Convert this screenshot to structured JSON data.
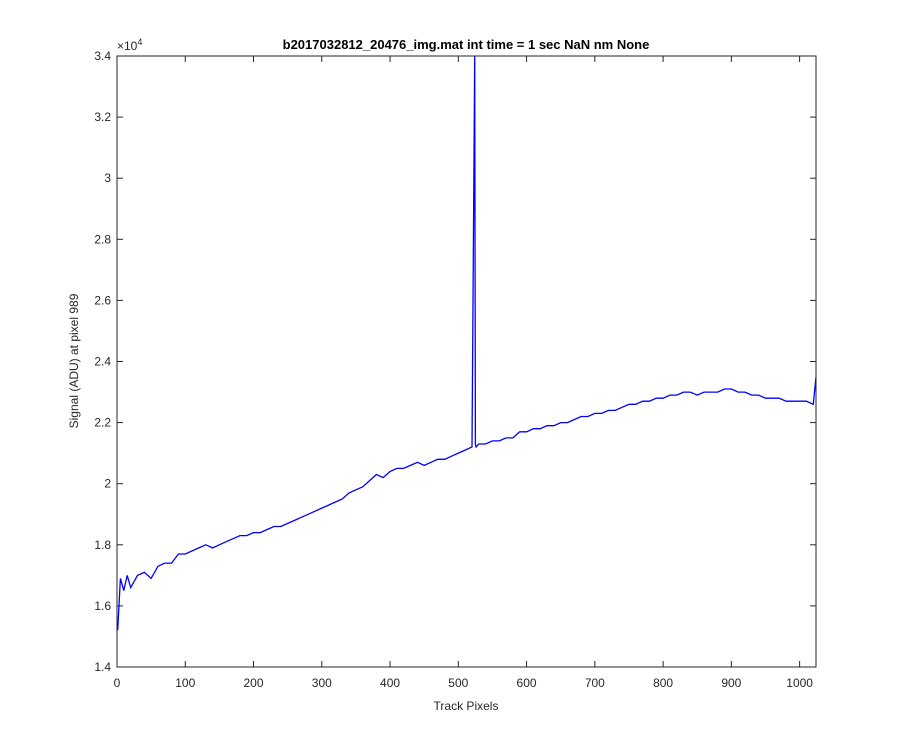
{
  "chart_data": {
    "type": "line",
    "title": "b2017032812_20476_img.mat int time = 1 sec  NaN nm None",
    "xlabel": "Track Pixels",
    "ylabel": "Signal (ADU) at pixel 989",
    "y_exponent_label": "×10",
    "y_exponent_power": "4",
    "xlim": [
      0,
      1024
    ],
    "ylim": [
      14000,
      34000
    ],
    "x_ticks": [
      0,
      100,
      200,
      300,
      400,
      500,
      600,
      700,
      800,
      900,
      1000
    ],
    "x_tick_labels": [
      "0",
      "100",
      "200",
      "300",
      "400",
      "500",
      "600",
      "700",
      "800",
      "900",
      "1000"
    ],
    "y_ticks": [
      14000,
      16000,
      18000,
      20000,
      22000,
      24000,
      26000,
      28000,
      30000,
      32000,
      34000
    ],
    "y_tick_labels": [
      "1.4",
      "1.6",
      "1.8",
      "2",
      "2.2",
      "2.4",
      "2.6",
      "2.8",
      "3",
      "3.2",
      "3.4"
    ],
    "grid": false,
    "line_color": "#0000ff",
    "series": [
      {
        "x": [
          1,
          5,
          10,
          15,
          20,
          30,
          40,
          50,
          60,
          70,
          80,
          90,
          100,
          110,
          120,
          130,
          140,
          150,
          160,
          170,
          180,
          190,
          200,
          210,
          220,
          230,
          240,
          250,
          260,
          270,
          280,
          290,
          300,
          310,
          320,
          330,
          340,
          350,
          360,
          370,
          380,
          390,
          400,
          410,
          420,
          430,
          440,
          450,
          460,
          470,
          480,
          490,
          500,
          510,
          520,
          524,
          525,
          526,
          530,
          540,
          550,
          560,
          570,
          580,
          590,
          600,
          610,
          620,
          630,
          640,
          650,
          660,
          670,
          680,
          690,
          700,
          710,
          720,
          730,
          740,
          750,
          760,
          770,
          780,
          790,
          800,
          810,
          820,
          830,
          840,
          850,
          860,
          870,
          880,
          890,
          900,
          910,
          920,
          930,
          940,
          950,
          960,
          970,
          980,
          990,
          1000,
          1010,
          1020,
          1024
        ],
        "y": [
          15200,
          16900,
          16500,
          17000,
          16600,
          17000,
          17100,
          16900,
          17300,
          17400,
          17400,
          17700,
          17700,
          17800,
          17900,
          18000,
          17900,
          18000,
          18100,
          18200,
          18300,
          18300,
          18400,
          18400,
          18500,
          18600,
          18600,
          18700,
          18800,
          18900,
          19000,
          19100,
          19200,
          19300,
          19400,
          19500,
          19700,
          19800,
          19900,
          20100,
          20300,
          20200,
          20400,
          20500,
          20500,
          20600,
          20700,
          20600,
          20700,
          20800,
          20800,
          20900,
          21000,
          21100,
          21200,
          34000,
          21300,
          21200,
          21300,
          21300,
          21400,
          21400,
          21500,
          21500,
          21700,
          21700,
          21800,
          21800,
          21900,
          21900,
          22000,
          22000,
          22100,
          22200,
          22200,
          22300,
          22300,
          22400,
          22400,
          22500,
          22600,
          22600,
          22700,
          22700,
          22800,
          22800,
          22900,
          22900,
          23000,
          23000,
          22900,
          23000,
          23000,
          23000,
          23100,
          23100,
          23000,
          23000,
          22900,
          22900,
          22800,
          22800,
          22800,
          22700,
          22700,
          22700,
          22700,
          22600,
          23500
        ]
      }
    ]
  }
}
